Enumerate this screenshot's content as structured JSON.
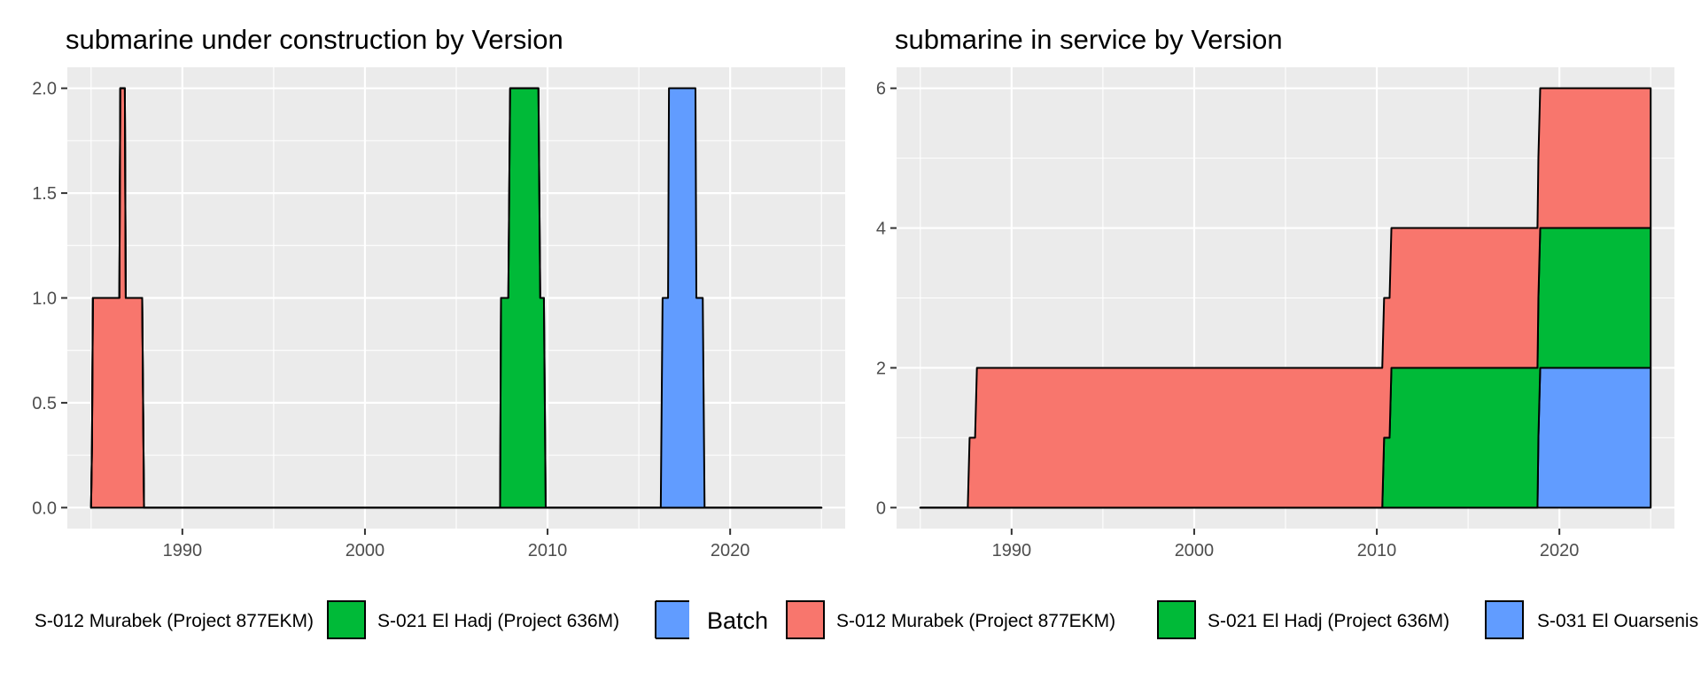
{
  "chart_data": [
    {
      "type": "area",
      "title": "submarine under construction by Version",
      "xlabel": "",
      "ylabel": "",
      "xlim": [
        1983.7,
        2026.3
      ],
      "ylim": [
        -0.1,
        2.1
      ],
      "x_ticks": [
        1990,
        2000,
        2010,
        2020
      ],
      "y_ticks": [
        0,
        0.5,
        1,
        1.5,
        2
      ],
      "y_tick_labels": [
        "0.0",
        "0.5",
        "1.0",
        "1.5",
        "2.0"
      ],
      "grid": true,
      "stacked": true,
      "series": [
        {
          "label": "S-012 Murabek (Project 877EKM)",
          "color": "#F8766D",
          "points": [
            [
              1985,
              0
            ],
            [
              1985.05,
              0.3
            ],
            [
              1985.1,
              1
            ],
            [
              1986.55,
              1
            ],
            [
              1986.6,
              2
            ],
            [
              1986.85,
              2
            ],
            [
              1986.9,
              1
            ],
            [
              1987.8,
              1
            ],
            [
              1987.9,
              0
            ],
            [
              2025,
              0
            ]
          ]
        },
        {
          "label": "S-021 El Hadj (Project 636M)",
          "color": "#00BA38",
          "points": [
            [
              1985,
              0
            ],
            [
              2007.4,
              0
            ],
            [
              2007.45,
              1
            ],
            [
              2007.85,
              1
            ],
            [
              2007.95,
              2
            ],
            [
              2009.5,
              2
            ],
            [
              2009.6,
              1
            ],
            [
              2009.8,
              1
            ],
            [
              2009.9,
              0
            ],
            [
              2025,
              0
            ]
          ]
        },
        {
          "label": "S-031 El Ouarsenis",
          "color": "#619CFF",
          "points": [
            [
              1985,
              0
            ],
            [
              2016.2,
              0
            ],
            [
              2016.3,
              1
            ],
            [
              2016.6,
              1
            ],
            [
              2016.65,
              2
            ],
            [
              2018.1,
              2
            ],
            [
              2018.15,
              1
            ],
            [
              2018.5,
              1
            ],
            [
              2018.6,
              0
            ],
            [
              2025,
              0
            ]
          ]
        }
      ]
    },
    {
      "type": "area",
      "title": "submarine in service by Version",
      "xlabel": "",
      "ylabel": "",
      "xlim": [
        1983.7,
        2026.3
      ],
      "ylim": [
        -0.3,
        6.3
      ],
      "x_ticks": [
        1990,
        2000,
        2010,
        2020
      ],
      "y_ticks": [
        0,
        2,
        4,
        6
      ],
      "y_tick_labels": [
        "0",
        "2",
        "4",
        "6"
      ],
      "grid": true,
      "stacked": true,
      "series": [
        {
          "label": "S-031 El Ouarsenis",
          "color": "#619CFF",
          "points": [
            [
              1985,
              0
            ],
            [
              2018.8,
              0
            ],
            [
              2018.85,
              1
            ],
            [
              2018.95,
              2
            ],
            [
              2025,
              2
            ],
            [
              2025,
              0
            ]
          ]
        },
        {
          "label": "S-021 El Hadj (Project 636M)",
          "color": "#00BA38",
          "points": [
            [
              1985,
              0
            ],
            [
              2010.3,
              0
            ],
            [
              2010.4,
              1
            ],
            [
              2010.7,
              1
            ],
            [
              2010.8,
              2
            ],
            [
              2025,
              2
            ],
            [
              2025,
              0
            ]
          ]
        },
        {
          "label": "S-012 Murabek (Project 877EKM)",
          "color": "#F8766D",
          "points": [
            [
              1985,
              0
            ],
            [
              1987.6,
              0
            ],
            [
              1987.7,
              1
            ],
            [
              1988.0,
              1
            ],
            [
              1988.1,
              2
            ],
            [
              2025,
              2
            ],
            [
              2025,
              0
            ]
          ]
        }
      ]
    }
  ],
  "legend": {
    "title": "Batch",
    "items_left": [
      {
        "label": "S-012 Murabek (Project 877EKM)",
        "color": "#F8766D"
      },
      {
        "label": "S-021 El Hadj (Project 636M)",
        "color": "#00BA38"
      },
      {
        "label": "",
        "color": "#619CFF"
      }
    ],
    "items_right": [
      {
        "label": "S-012 Murabek (Project 877EKM)",
        "color": "#F8766D"
      },
      {
        "label": "S-021 El Hadj (Project 636M)",
        "color": "#00BA38"
      },
      {
        "label": "S-031 El Ouarsenis",
        "color": "#619CFF"
      }
    ]
  },
  "style": {
    "panel_background": "#EBEBEB",
    "grid_color": "#FFFFFF",
    "outline_color": "#000000",
    "tick_label_color": "#4D4D4D"
  }
}
